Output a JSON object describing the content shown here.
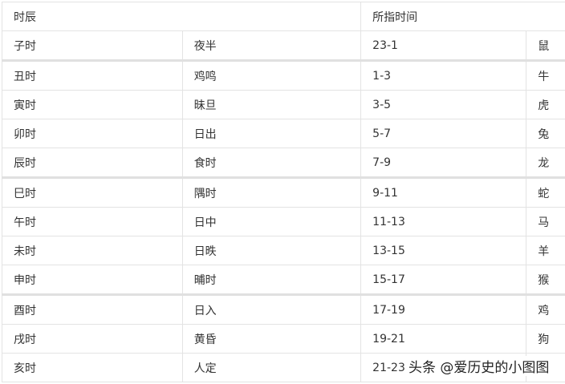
{
  "header": {
    "col1": "时辰",
    "col2": "所指时间"
  },
  "rows": [
    [
      "子时",
      "夜半",
      "23-1",
      "鼠"
    ],
    [
      "丑时",
      "鸡鸣",
      "1-3",
      "牛"
    ],
    [
      "寅时",
      "昧旦",
      "3-5",
      "虎"
    ],
    [
      "卯时",
      "日出",
      "5-7",
      "兔"
    ],
    [
      "辰时",
      "食时",
      "7-9",
      "龙"
    ],
    [
      "巳时",
      "隅时",
      "9-11",
      "蛇"
    ],
    [
      "午时",
      "日中",
      "11-13",
      "马"
    ],
    [
      "未时",
      "日昳",
      "13-15",
      "羊"
    ],
    [
      "申时",
      "晡时",
      "15-17",
      "猴"
    ],
    [
      "酉时",
      "日入",
      "17-19",
      "鸡"
    ],
    [
      "戌时",
      "黄昏",
      "19-21",
      "狗"
    ],
    [
      "亥时",
      "人定",
      "21-23",
      ""
    ]
  ],
  "watermark": "头条 @爱历史的小图图"
}
